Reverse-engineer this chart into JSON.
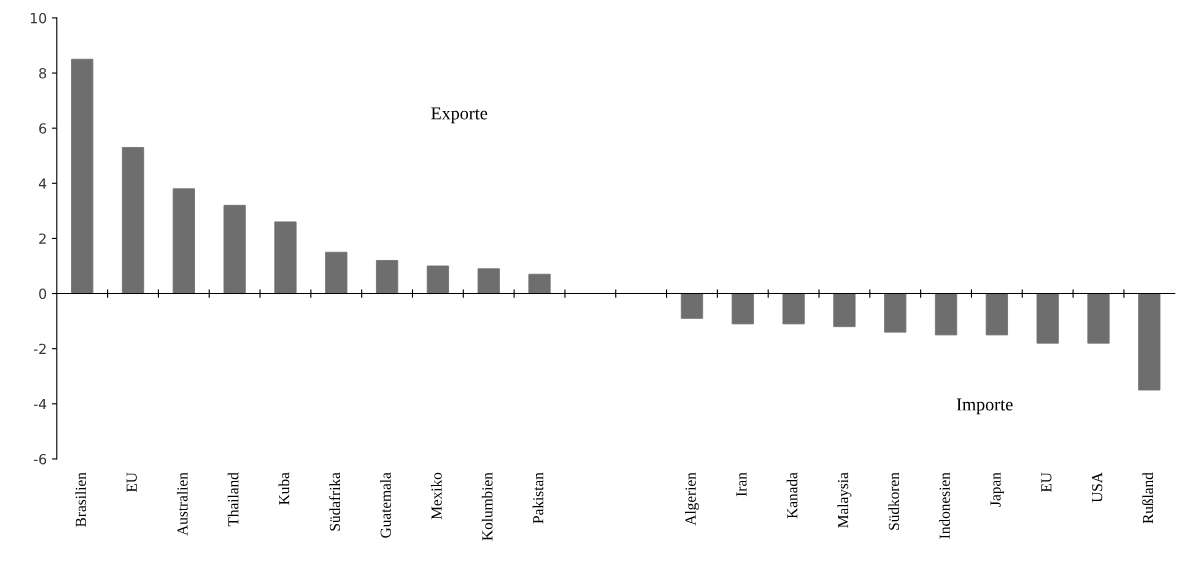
{
  "chart_data": {
    "type": "bar",
    "categories": [
      "Brasilien",
      "EU",
      "Australien",
      "Thailand",
      "Kuba",
      "Südafrika",
      "Guatemala",
      "Mexiko",
      "Kolumbien",
      "Pakistan",
      null,
      null,
      "Algerien",
      "Iran",
      "Kanada",
      "Malaysia",
      "Südkoren",
      "Indonesien",
      "Japan",
      "EU",
      "USA",
      "Rußland"
    ],
    "values": [
      8.5,
      5.3,
      3.8,
      3.2,
      2.6,
      1.5,
      1.2,
      1.0,
      0.9,
      0.7,
      null,
      null,
      -0.9,
      -1.1,
      -1.1,
      -1.2,
      -1.4,
      -1.5,
      -1.5,
      -1.8,
      -1.8,
      -3.5
    ],
    "color": "#6e6e6e",
    "ylim": [
      -6,
      10
    ],
    "yticks": [
      -6,
      -4,
      -2,
      0,
      2,
      4,
      6,
      8,
      10
    ],
    "annotations": [
      "Exporte",
      "Importe"
    ],
    "legend": false
  }
}
